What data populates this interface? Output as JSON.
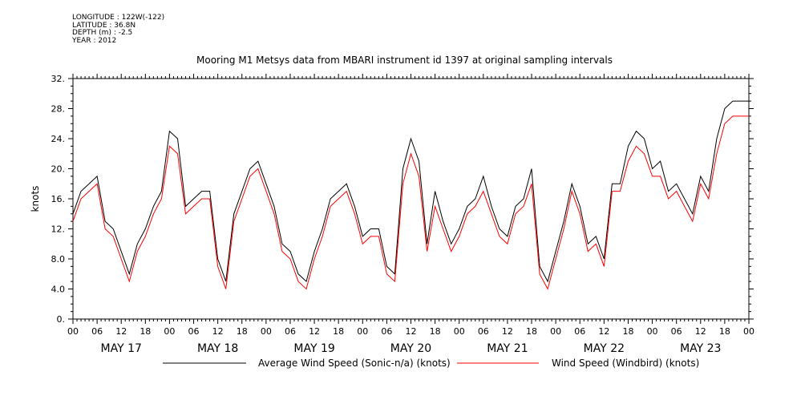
{
  "meta": {
    "longitude": "LONGITUDE : 122W(-122)",
    "latitude": "LATITUDE : 36.8N",
    "depth": "DEPTH (m) : -2.5",
    "year": "YEAR : 2012"
  },
  "chart_data": {
    "type": "line",
    "title": "Mooring M1 Metsys data from MBARI instrument id 1397 at original sampling intervals",
    "ylabel": "knots",
    "ylim": [
      0,
      32
    ],
    "yticks": [
      "0.",
      "4.0",
      "8.0",
      "12.",
      "16.",
      "20.",
      "24.",
      "28.",
      "32."
    ],
    "xlim_hours": [
      0,
      168
    ],
    "x_hour_ticks": [
      "00",
      "06",
      "12",
      "18",
      "00",
      "06",
      "12",
      "18",
      "00",
      "06",
      "12",
      "18",
      "00",
      "06",
      "12",
      "18",
      "00",
      "06",
      "12",
      "18",
      "00",
      "06",
      "12",
      "18",
      "00",
      "06",
      "12",
      "18",
      "00"
    ],
    "x_day_labels": [
      "MAY 17",
      "MAY 18",
      "MAY 19",
      "MAY 20",
      "MAY 21",
      "MAY 22",
      "MAY 23"
    ],
    "grid": false,
    "legend_position": "bottom",
    "colors": {
      "series1": "#000000",
      "series2": "#ff0000"
    },
    "series": [
      {
        "name": "Average Wind Speed (Sonic-n/a) (knots)",
        "x": [
          0,
          2,
          4,
          6,
          8,
          10,
          12,
          14,
          16,
          18,
          20,
          22,
          24,
          26,
          28,
          30,
          32,
          34,
          36,
          38,
          40,
          42,
          44,
          46,
          48,
          50,
          52,
          54,
          56,
          58,
          60,
          62,
          64,
          66,
          68,
          70,
          72,
          74,
          76,
          78,
          80,
          82,
          84,
          86,
          88,
          90,
          92,
          94,
          96,
          98,
          100,
          102,
          104,
          106,
          108,
          110,
          112,
          114,
          116,
          118,
          120,
          122,
          124,
          126,
          128,
          130,
          132,
          134,
          136,
          138,
          140,
          142,
          144,
          146,
          148,
          150,
          152,
          154,
          156,
          158,
          160,
          162,
          164,
          166,
          168
        ],
        "y": [
          14,
          17,
          18,
          19,
          13,
          12,
          9,
          6,
          10,
          12,
          15,
          17,
          25,
          24,
          15,
          16,
          17,
          17,
          8,
          5,
          14,
          17,
          20,
          21,
          18,
          15,
          10,
          9,
          6,
          5,
          9,
          12,
          16,
          17,
          18,
          15,
          11,
          12,
          12,
          7,
          6,
          20,
          24,
          21,
          10,
          17,
          13,
          10,
          12,
          15,
          16,
          19,
          15,
          12,
          11,
          15,
          16,
          20,
          7,
          5,
          9,
          13,
          18,
          15,
          10,
          11,
          8,
          18,
          18,
          23,
          25,
          24,
          20,
          21,
          17,
          18,
          16,
          14,
          19,
          17,
          24,
          28,
          29,
          29,
          29
        ]
      },
      {
        "name": "Wind Speed (Windbird) (knots)",
        "x": [
          0,
          2,
          4,
          6,
          8,
          10,
          12,
          14,
          16,
          18,
          20,
          22,
          24,
          26,
          28,
          30,
          32,
          34,
          36,
          38,
          40,
          42,
          44,
          46,
          48,
          50,
          52,
          54,
          56,
          58,
          60,
          62,
          64,
          66,
          68,
          70,
          72,
          74,
          76,
          78,
          80,
          82,
          84,
          86,
          88,
          90,
          92,
          94,
          96,
          98,
          100,
          102,
          104,
          106,
          108,
          110,
          112,
          114,
          116,
          118,
          120,
          122,
          124,
          126,
          128,
          130,
          132,
          134,
          136,
          138,
          140,
          142,
          144,
          146,
          148,
          150,
          152,
          154,
          156,
          158,
          160,
          162,
          164,
          166,
          168
        ],
        "y": [
          13,
          16,
          17,
          18,
          12,
          11,
          8,
          5,
          9,
          11,
          14,
          16,
          23,
          22,
          14,
          15,
          16,
          16,
          7,
          4,
          13,
          16,
          19,
          20,
          17,
          14,
          9,
          8,
          5,
          4,
          8,
          11,
          15,
          16,
          17,
          14,
          10,
          11,
          11,
          6,
          5,
          18,
          22,
          19,
          9,
          15,
          12,
          9,
          11,
          14,
          15,
          17,
          14,
          11,
          10,
          14,
          15,
          18,
          6,
          4,
          8,
          12,
          17,
          14,
          9,
          10,
          7,
          17,
          17,
          21,
          23,
          22,
          19,
          19,
          16,
          17,
          15,
          13,
          18,
          16,
          22,
          26,
          27,
          27,
          27
        ]
      }
    ]
  }
}
